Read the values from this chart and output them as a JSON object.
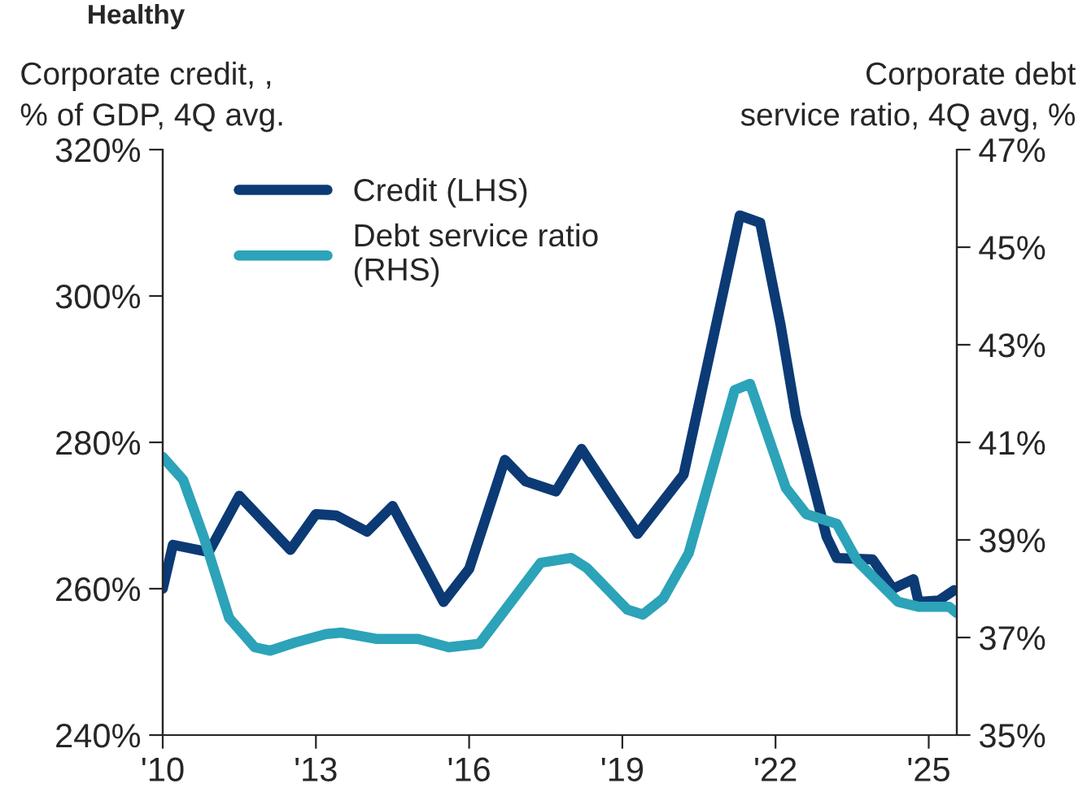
{
  "chart_data": {
    "type": "line",
    "title": "Healthy",
    "ylabel": "Corporate credit, ,\n% of GDP, 4Q avg.",
    "y2label": "Corporate debt\nservice ratio, 4Q avg, %",
    "xlim": [
      2010,
      2025.55
    ],
    "xticks": [
      {
        "value": 2010,
        "label": "'10"
      },
      {
        "value": 2013,
        "label": "'13"
      },
      {
        "value": 2016,
        "label": "'16"
      },
      {
        "value": 2019,
        "label": "'19"
      },
      {
        "value": 2022,
        "label": "'22"
      },
      {
        "value": 2025,
        "label": "'25"
      }
    ],
    "ylim": [
      240,
      320
    ],
    "yticks": [
      {
        "value": 240,
        "label": "240%"
      },
      {
        "value": 260,
        "label": "260%"
      },
      {
        "value": 280,
        "label": "280%"
      },
      {
        "value": 300,
        "label": "300%"
      },
      {
        "value": 320,
        "label": "320%"
      }
    ],
    "y2lim": [
      35,
      47
    ],
    "y2ticks": [
      {
        "value": 35,
        "label": "35%"
      },
      {
        "value": 37,
        "label": "37%"
      },
      {
        "value": 39,
        "label": "39%"
      },
      {
        "value": 41,
        "label": "41%"
      },
      {
        "value": 43,
        "label": "43%"
      },
      {
        "value": 45,
        "label": "45%"
      },
      {
        "value": 47,
        "label": "47%"
      }
    ],
    "grid": false,
    "legend": "top left",
    "line_style": "solid",
    "marker": "none",
    "series": [
      {
        "name": "Credit (LHS)",
        "color": "#0b3a75",
        "x": [
          2010.0,
          2010.2,
          2010.9,
          2011.5,
          2012.5,
          2013.0,
          2013.4,
          2014.0,
          2014.5,
          2015.5,
          2016.0,
          2016.7,
          2017.1,
          2017.7,
          2018.2,
          2018.8,
          2019.3,
          2020.2,
          2021.3,
          2021.7,
          2022.1,
          2022.4,
          2023.0,
          2023.2,
          2023.9,
          2024.3,
          2024.7,
          2024.8,
          2025.2,
          2025.5
        ],
        "values": [
          260,
          266,
          265,
          272.7,
          265.3,
          270.2,
          270,
          267.8,
          271.3,
          258.2,
          262.7,
          277.6,
          274.7,
          273.3,
          279.1,
          272.7,
          267.5,
          275.6,
          311,
          310,
          296,
          283.6,
          267.1,
          264.2,
          264,
          260,
          261.3,
          258.2,
          258.4,
          259.8
        ]
      },
      {
        "name": "Debt service ratio\n(RHS)",
        "color": "#2ca3b8",
        "axis": "y2",
        "x": [
          2010.0,
          2010.4,
          2010.8,
          2011.3,
          2011.8,
          2012.1,
          2012.6,
          2013.2,
          2013.5,
          2014.2,
          2015.0,
          2015.6,
          2016.2,
          2017.4,
          2018.0,
          2018.3,
          2019.1,
          2019.4,
          2019.8,
          2020.3,
          2021.2,
          2021.5,
          2022.2,
          2022.6,
          2023.2,
          2023.6,
          2024.4,
          2024.8,
          2025.4,
          2025.55
        ],
        "values": [
          40.7,
          40.23,
          39.07,
          37.4,
          36.8,
          36.73,
          36.9,
          37.07,
          37.1,
          36.97,
          36.97,
          36.8,
          36.87,
          38.53,
          38.63,
          38.43,
          37.57,
          37.47,
          37.8,
          38.73,
          42.07,
          42.2,
          40.07,
          39.53,
          39.33,
          38.57,
          37.73,
          37.63,
          37.63,
          37.5
        ]
      }
    ]
  }
}
